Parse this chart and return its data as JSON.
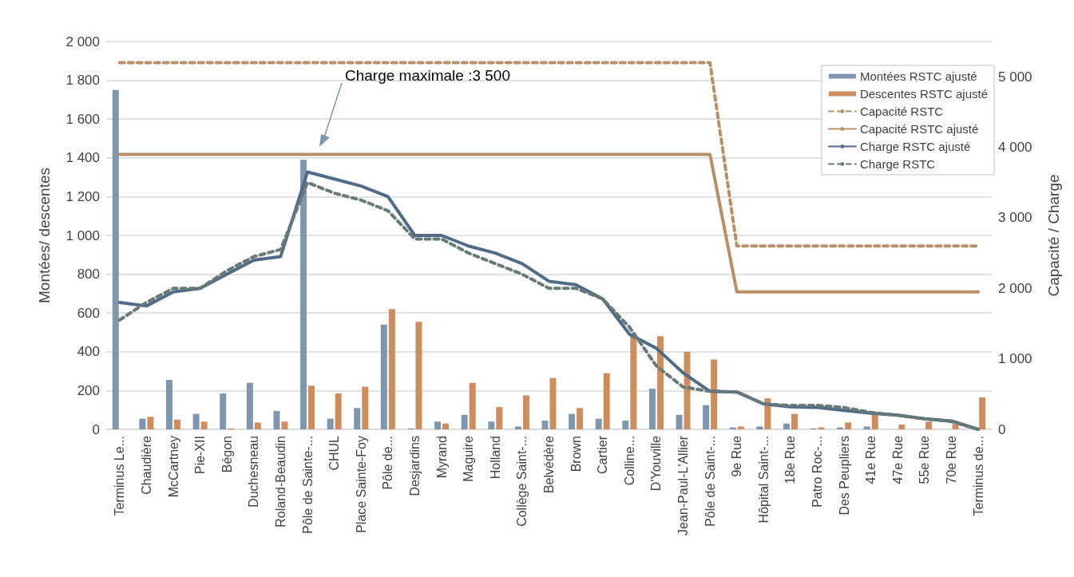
{
  "chart_data": {
    "type": "bar",
    "categories": [
      "Terminus Le...",
      "Chaudière",
      "McCartney",
      "Pie-XII",
      "Bégon",
      "Duchesneau",
      "Roland-Beaudin",
      "Pôle de Sainte-...",
      "CHUL",
      "Place Sainte-Foy",
      "Pôle de...",
      "Desjardins",
      "Myrand",
      "Maguire",
      "Holland",
      "Collège Saint-...",
      "Belvédère",
      "Brown",
      "Cartier",
      "Colline...",
      "D'Youville",
      "Jean-Paul-L'Allier",
      "Pôle de Saint-...",
      "9e Rue",
      "Hôpital Saint-...",
      "18e Rue",
      "Patro Roc-...",
      "Des Peupliers",
      "41e Rue",
      "47e Rue",
      "55e Rue",
      "70e Rue",
      "Terminus de..."
    ],
    "series": [
      {
        "name": "Montées RSTC ajusté",
        "color": "#7f97ae",
        "values": [
          1750,
          55,
          255,
          80,
          185,
          240,
          95,
          1390,
          55,
          110,
          540,
          5,
          40,
          75,
          40,
          15,
          45,
          80,
          55,
          45,
          210,
          75,
          125,
          10,
          15,
          30,
          5,
          10,
          15,
          0,
          0,
          0,
          0
        ]
      },
      {
        "name": "Descentes RSTC ajusté",
        "color": "#cf8c5c",
        "values": [
          0,
          65,
          50,
          40,
          5,
          35,
          40,
          225,
          185,
          220,
          620,
          555,
          30,
          240,
          115,
          175,
          265,
          110,
          290,
          495,
          480,
          400,
          360,
          15,
          160,
          80,
          10,
          35,
          75,
          25,
          40,
          28,
          165
        ]
      },
      {
        "name": "Capacité RSTC",
        "type": "line",
        "axis": "y2",
        "line_style": "dashed",
        "color": "#b89068",
        "values": [
          5200,
          5200,
          5200,
          5200,
          5200,
          5200,
          5200,
          5200,
          5200,
          5200,
          5200,
          5200,
          5200,
          5200,
          5200,
          5200,
          5200,
          5200,
          5200,
          5200,
          5200,
          5200,
          5200,
          2600,
          2600,
          2600,
          2600,
          2600,
          2600,
          2600,
          2600,
          2600,
          2600
        ]
      },
      {
        "name": "Capacité RSTC ajusté",
        "type": "line",
        "axis": "y2",
        "line_style": "solid",
        "color": "#b89068",
        "values": [
          3900,
          3900,
          3900,
          3900,
          3900,
          3900,
          3900,
          3900,
          3900,
          3900,
          3900,
          3900,
          3900,
          3900,
          3900,
          3900,
          3900,
          3900,
          3900,
          3900,
          3900,
          3900,
          3900,
          1950,
          1950,
          1950,
          1950,
          1950,
          1950,
          1950,
          1950,
          1950,
          1950
        ]
      },
      {
        "name": "Charge RSTC ajusté",
        "type": "line",
        "axis": "y2",
        "line_style": "solid",
        "color": "#4f6b87",
        "values": [
          1800,
          1750,
          1950,
          2000,
          2200,
          2400,
          2450,
          3650,
          3550,
          3450,
          3300,
          2750,
          2750,
          2600,
          2500,
          2350,
          2100,
          2050,
          1850,
          1350,
          1150,
          800,
          540,
          530,
          360,
          320,
          310,
          270,
          230,
          200,
          150,
          120,
          0
        ]
      },
      {
        "name": "Charge RSTC",
        "type": "line",
        "axis": "y2",
        "line_style": "dashed",
        "color": "#687a77",
        "values": [
          1550,
          1800,
          2000,
          2000,
          2250,
          2450,
          2550,
          3500,
          3350,
          3250,
          3100,
          2700,
          2700,
          2500,
          2350,
          2200,
          2000,
          2000,
          1850,
          1450,
          900,
          600,
          540,
          530,
          360,
          340,
          340,
          310,
          240,
          200,
          150,
          110,
          0
        ]
      }
    ],
    "ylabel": "Montées/ descentes",
    "y2label": "Capacité / Charge",
    "ylim": [
      0,
      2000
    ],
    "yticks": [
      0,
      200,
      400,
      600,
      800,
      {
        "value": 1000,
        "label": "1 000"
      },
      {
        "value": 1200,
        "label": "1 200"
      },
      {
        "value": 1400,
        "label": "1 400"
      },
      {
        "value": 1600,
        "label": "1 600"
      },
      {
        "value": 1800,
        "label": "1 800"
      },
      {
        "value": 2000,
        "label": "2 000"
      }
    ],
    "y2lim": [
      0,
      5500
    ],
    "y2ticks": [
      0,
      {
        "value": 1000,
        "label": "1 000"
      },
      {
        "value": 2000,
        "label": "2 000"
      },
      {
        "value": 3000,
        "label": "3 000"
      },
      {
        "value": 4000,
        "label": "4 000"
      },
      {
        "value": 5000,
        "label": "5 000"
      }
    ],
    "annotations": [
      "Charge maximale :3 500"
    ],
    "grid": "y",
    "legend": "top right",
    "marker": "none"
  }
}
